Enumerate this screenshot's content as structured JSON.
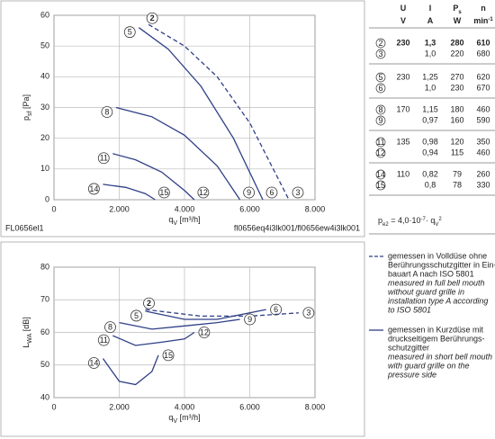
{
  "chart_data": [
    {
      "type": "line",
      "xlabel": {
        "text": "q",
        "sub": "V",
        "unit": " [m³/h]"
      },
      "ylabel": {
        "text": "p",
        "sub": "sf",
        "unit": " [Pa]"
      },
      "xlim": [
        0,
        8000
      ],
      "ylim": [
        0,
        60
      ],
      "xticks": [
        {
          "value": 0,
          "label": "0"
        },
        {
          "value": 2000,
          "label": "2.000"
        },
        {
          "value": 4000,
          "label": "4.000"
        },
        {
          "value": 6000,
          "label": "6.000"
        },
        {
          "value": 8000,
          "label": "8.000"
        }
      ],
      "yticks": [
        0,
        10,
        20,
        30,
        40,
        50,
        60
      ],
      "grid": true,
      "footer_left": "FL0656el1",
      "footer_right": "fl0656eq4i3lk001/fl0656ew4i3lk001",
      "series": [
        {
          "labels": [
            "5",
            "6"
          ],
          "style": "solid",
          "color": "#2f3f86",
          "x": [
            2600,
            3500,
            4500,
            5500,
            6400
          ],
          "values": [
            56,
            49,
            37,
            20,
            0
          ]
        },
        {
          "labels": [
            "2",
            "3"
          ],
          "style": "dashed",
          "color": "#2f3f86",
          "x": [
            2900,
            4000,
            5000,
            6000,
            7200
          ],
          "values": [
            57,
            50,
            40,
            25,
            0
          ]
        },
        {
          "labels": [
            "8",
            "9"
          ],
          "style": "solid",
          "color": "#2f3f86",
          "x": [
            1900,
            3000,
            4000,
            5000,
            5700
          ],
          "values": [
            30,
            27,
            21,
            11,
            0
          ]
        },
        {
          "labels": [
            "11",
            "12"
          ],
          "style": "solid",
          "color": "#2f3f86",
          "x": [
            1800,
            2500,
            3300,
            4000,
            4300
          ],
          "values": [
            15,
            13,
            9,
            3,
            0
          ]
        },
        {
          "labels": [
            "14",
            "15"
          ],
          "style": "solid",
          "color": "#2f3f86",
          "x": [
            1500,
            2200,
            2800,
            3100
          ],
          "values": [
            5,
            4,
            2,
            0
          ]
        }
      ]
    },
    {
      "type": "line",
      "xlabel": {
        "text": "q",
        "sub": "V",
        "unit": " [m³/h]"
      },
      "ylabel": {
        "text": "L",
        "sub": "WA",
        "unit": " [dB]"
      },
      "xlim": [
        0,
        8000
      ],
      "ylim": [
        40,
        80
      ],
      "xticks": [
        {
          "value": 0,
          "label": "0"
        },
        {
          "value": 2000,
          "label": "2.000"
        },
        {
          "value": 4000,
          "label": "4.000"
        },
        {
          "value": 6000,
          "label": "6.000"
        },
        {
          "value": 8000,
          "label": "8.000"
        }
      ],
      "yticks": [
        40,
        50,
        60,
        70,
        80
      ],
      "grid": true,
      "series": [
        {
          "labels": [
            "5",
            "6"
          ],
          "style": "solid",
          "color": "#2f3f86",
          "x": [
            2800,
            4000,
            5000,
            6500
          ],
          "values": [
            66.5,
            64,
            64,
            67
          ]
        },
        {
          "labels": [
            "2",
            "3"
          ],
          "style": "dashed",
          "color": "#2f3f86",
          "x": [
            2800,
            4500,
            6000,
            7500
          ],
          "values": [
            67,
            65,
            65,
            66
          ]
        },
        {
          "labels": [
            "8",
            "9"
          ],
          "style": "solid",
          "color": "#2f3f86",
          "x": [
            2000,
            3000,
            4000,
            5000,
            5700
          ],
          "values": [
            63,
            61,
            62,
            63,
            64
          ]
        },
        {
          "labels": [
            "11",
            "12"
          ],
          "style": "solid",
          "color": "#2f3f86",
          "x": [
            1800,
            2500,
            3300,
            4000,
            4300
          ],
          "values": [
            59,
            56,
            57,
            58,
            60
          ]
        },
        {
          "labels": [
            "14",
            "15"
          ],
          "style": "solid",
          "color": "#2f3f86",
          "x": [
            1500,
            2000,
            2500,
            3000,
            3200
          ],
          "values": [
            52,
            45,
            44,
            48,
            53
          ]
        }
      ]
    }
  ],
  "table": {
    "header": [
      "U",
      "I",
      "P",
      "n"
    ],
    "header_sub": "s",
    "units": [
      "V",
      "A",
      "W",
      "min"
    ],
    "units_sup": "-1",
    "groups": [
      [
        {
          "id": "2",
          "U": "230",
          "I": "1,3",
          "Ps": "280",
          "n": "610"
        },
        {
          "id": "3",
          "I": "1,0",
          "Ps": "220",
          "n": "680"
        }
      ],
      [
        {
          "id": "5",
          "U": "230",
          "I": "1,25",
          "Ps": "270",
          "n": "620"
        },
        {
          "id": "6",
          "I": "1,0",
          "Ps": "230",
          "n": "670"
        }
      ],
      [
        {
          "id": "8",
          "U": "170",
          "I": "1,15",
          "Ps": "180",
          "n": "460"
        },
        {
          "id": "9",
          "I": "0,97",
          "Ps": "160",
          "n": "590"
        }
      ],
      [
        {
          "id": "11",
          "U": "135",
          "I": "0,98",
          "Ps": "120",
          "n": "350"
        },
        {
          "id": "12",
          "I": "0,94",
          "Ps": "115",
          "n": "460"
        }
      ],
      [
        {
          "id": "14",
          "U": "110",
          "I": "0,82",
          "Ps": "79",
          "n": "260"
        },
        {
          "id": "15",
          "I": "0,8",
          "Ps": "78",
          "n": "330"
        }
      ]
    ],
    "formula": [
      "p",
      "e2",
      " = 4,0·10",
      "-7",
      "· q",
      "V",
      "2"
    ]
  },
  "legend": [
    {
      "style": "dashed",
      "de": [
        "gemessen in Volldüse ohne",
        "Berührungsschutzgitter in Ein-",
        "bauart A nach ISO 5801"
      ],
      "en": [
        "measured in full bell mouth",
        "without guard grille in",
        "installation type A according",
        "to ISO 5801"
      ]
    },
    {
      "style": "solid",
      "de": [
        "gemessen in Kurzdüse mit",
        "druckseitigem Berührungs-",
        "schutzgitter"
      ],
      "en": [
        "measured in short bell mouth",
        "with guard grille on the",
        "pressure side"
      ]
    }
  ]
}
